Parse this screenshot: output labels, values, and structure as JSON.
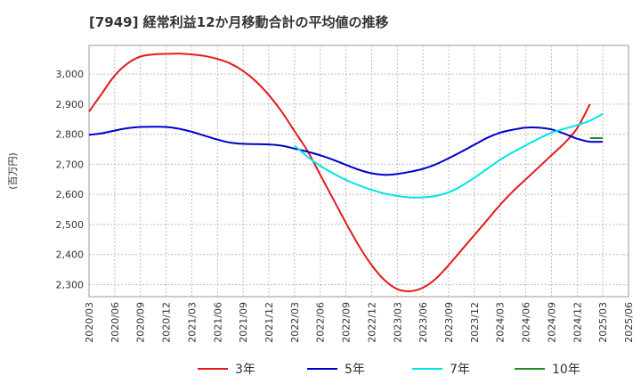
{
  "chart_data": {
    "type": "line",
    "title": "[7949]  経常利益12か月移動合計の平均値の推移",
    "ylabel": "(百万円)",
    "xlabel": "",
    "ylim": [
      2260,
      3095
    ],
    "yticks": [
      2300,
      2400,
      2500,
      2600,
      2700,
      2800,
      2900,
      3000
    ],
    "ytick_labels": [
      "2,300",
      "2,400",
      "2,500",
      "2,600",
      "2,700",
      "2,800",
      "2,900",
      "3,000"
    ],
    "xtick_labels": [
      "2020/03",
      "2020/06",
      "2020/09",
      "2020/12",
      "2021/03",
      "2021/06",
      "2021/09",
      "2021/12",
      "2022/03",
      "2022/06",
      "2022/09",
      "2022/12",
      "2023/03",
      "2023/06",
      "2023/09",
      "2023/12",
      "2024/03",
      "2024/06",
      "2024/09",
      "2024/12",
      "2025/03",
      "2025/06"
    ],
    "grid": true,
    "legend_position": "bottom",
    "series": [
      {
        "name": "3年",
        "color": "#e31a1c",
        "start_index": 0,
        "values": [
          2875,
          2935,
          2995,
          3035,
          3058,
          3065,
          3067,
          3068,
          3065,
          3060,
          3050,
          3035,
          3010,
          2975,
          2930,
          2875,
          2810,
          2745,
          2665,
          2585,
          2505,
          2430,
          2365,
          2315,
          2285,
          2278,
          2290,
          2320,
          2365,
          2415,
          2465,
          2515,
          2565,
          2610,
          2650,
          2690,
          2730,
          2770,
          2820,
          2900
        ]
      },
      {
        "name": "5年",
        "color": "#0000cc",
        "start_index": 0,
        "values": [
          2798,
          2803,
          2812,
          2820,
          2824,
          2825,
          2824,
          2818,
          2808,
          2795,
          2782,
          2772,
          2768,
          2767,
          2766,
          2762,
          2752,
          2742,
          2730,
          2715,
          2698,
          2682,
          2670,
          2665,
          2668,
          2675,
          2685,
          2700,
          2720,
          2742,
          2765,
          2788,
          2805,
          2815,
          2822,
          2822,
          2816,
          2802,
          2785,
          2775,
          2775
        ]
      },
      {
        "name": "7年",
        "color": "#00e5e5",
        "start_index": 16,
        "values": [
          2762,
          2725,
          2695,
          2670,
          2648,
          2630,
          2615,
          2603,
          2595,
          2590,
          2590,
          2595,
          2607,
          2628,
          2655,
          2685,
          2715,
          2740,
          2763,
          2785,
          2805,
          2818,
          2830,
          2845,
          2868
        ]
      },
      {
        "name": "10年",
        "color": "#228b22",
        "start_index": 39,
        "values": [
          2787,
          2787
        ]
      }
    ]
  }
}
